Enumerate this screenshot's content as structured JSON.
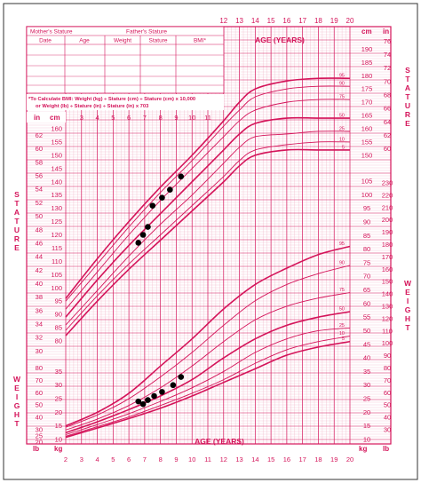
{
  "colors": {
    "accent": "#d4145a",
    "grid": "#f0a8c0",
    "background": "#ffffff",
    "points": "#000000"
  },
  "table": {
    "mothers_stature": "Mother's Stature",
    "fathers_stature": "Father's Stature",
    "columns": [
      "Date",
      "Age",
      "Weight",
      "Stature",
      "BMI*"
    ]
  },
  "bmi_note": {
    "line1": "*To Calculate BMI: Weight (kg) ÷ Stature (cm) ÷ Stature (cm) x 10,000",
    "line2": "or Weight (lb) ÷ Stature (in) ÷ Stature (in) x 703"
  },
  "labels": {
    "age_years_top": "AGE (YEARS)",
    "age_years_bottom": "AGE (YEARS)",
    "stature_left": "STATURE",
    "stature_right": "STATURE",
    "weight_left": "WEIGHT",
    "weight_right": "WEIGHT",
    "in": "in",
    "cm": "cm",
    "lb": "lb",
    "kg": "kg"
  },
  "chart_data": {
    "type": "line",
    "x_ticks_top": [
      "12",
      "13",
      "14",
      "15",
      "16",
      "17",
      "18",
      "19",
      "20"
    ],
    "x_ticks_inner": [
      "3",
      "4",
      "5",
      "6",
      "7",
      "8",
      "9",
      "10",
      "11"
    ],
    "x_ticks_bottom": [
      "2",
      "3",
      "4",
      "5",
      "6",
      "7",
      "8",
      "9",
      "10",
      "11",
      "12",
      "13",
      "14",
      "15",
      "16",
      "17",
      "18",
      "19",
      "20"
    ],
    "stature_cm_ticks_left": [
      "80",
      "85",
      "90",
      "95",
      "100",
      "105",
      "110",
      "115",
      "120",
      "125",
      "130",
      "135",
      "140",
      "145",
      "150",
      "155",
      "160"
    ],
    "stature_in_ticks_left": [
      "30",
      "32",
      "34",
      "36",
      "38",
      "40",
      "42",
      "44",
      "46",
      "48",
      "50",
      "52",
      "54",
      "56",
      "58",
      "60",
      "62"
    ],
    "stature_cm_ticks_right": [
      "150",
      "155",
      "160",
      "165",
      "170",
      "175",
      "180",
      "185",
      "190"
    ],
    "stature_in_ticks_right": [
      "60",
      "62",
      "64",
      "66",
      "68",
      "70",
      "72",
      "74",
      "76"
    ],
    "weight_kg_ticks_left": [
      "10",
      "15",
      "20",
      "25",
      "30",
      "35"
    ],
    "weight_lb_ticks_left": [
      "20",
      "25",
      "30",
      "40",
      "50",
      "60",
      "70",
      "80"
    ],
    "weight_kg_ticks_right": [
      "10",
      "15",
      "20",
      "25",
      "30",
      "35",
      "40",
      "45",
      "50",
      "55",
      "60",
      "65",
      "70",
      "75",
      "80",
      "85",
      "90",
      "95",
      "100",
      "105"
    ],
    "weight_lb_ticks_right": [
      "30",
      "40",
      "50",
      "60",
      "70",
      "80",
      "90",
      "100",
      "110",
      "120",
      "130",
      "140",
      "150",
      "160",
      "170",
      "180",
      "190",
      "200",
      "210",
      "220",
      "230"
    ],
    "stature_percentiles": [
      {
        "name": "95",
        "x": [
          2,
          4,
          6,
          8,
          10,
          12,
          13,
          14,
          16,
          18,
          20
        ],
        "values": [
          96,
          111,
          125,
          138,
          150,
          163,
          170,
          175,
          178,
          179,
          179
        ]
      },
      {
        "name": "90",
        "x": [
          2,
          4,
          6,
          8,
          10,
          12,
          13,
          14,
          16,
          18,
          20
        ],
        "values": [
          95,
          109,
          123,
          136,
          148,
          161,
          167,
          172,
          175,
          176,
          176
        ]
      },
      {
        "name": "75",
        "x": [
          2,
          4,
          6,
          8,
          10,
          12,
          13,
          14,
          16,
          18,
          20
        ],
        "values": [
          92,
          106,
          120,
          133,
          145,
          157,
          163,
          167,
          170,
          171,
          171
        ]
      },
      {
        "name": "50",
        "x": [
          2,
          4,
          6,
          8,
          10,
          12,
          13,
          14,
          16,
          18,
          20
        ],
        "values": [
          89,
          103,
          116,
          128,
          140,
          152,
          158,
          162,
          164,
          164,
          164
        ]
      },
      {
        "name": "25",
        "x": [
          2,
          4,
          6,
          8,
          10,
          12,
          13,
          14,
          16,
          18,
          20
        ],
        "values": [
          86,
          99,
          112,
          124,
          135,
          147,
          153,
          157,
          158,
          159,
          159
        ]
      },
      {
        "name": "10",
        "x": [
          2,
          4,
          6,
          8,
          10,
          12,
          13,
          14,
          16,
          18,
          20
        ],
        "values": [
          84,
          97,
          109,
          120,
          131,
          142,
          148,
          152,
          154,
          155,
          155
        ]
      },
      {
        "name": "5",
        "x": [
          2,
          4,
          6,
          8,
          10,
          12,
          13,
          14,
          16,
          18,
          20
        ],
        "values": [
          82,
          95,
          107,
          118,
          129,
          140,
          146,
          150,
          152,
          152,
          152
        ]
      }
    ],
    "weight_percentiles": [
      {
        "name": "95",
        "x": [
          2,
          4,
          6,
          8,
          10,
          12,
          14,
          16,
          18,
          20
        ],
        "values": [
          15,
          20,
          27,
          37,
          47,
          58,
          67,
          73,
          78,
          81
        ]
      },
      {
        "name": "90",
        "x": [
          2,
          4,
          6,
          8,
          10,
          12,
          14,
          16,
          18,
          20
        ],
        "values": [
          14.5,
          19,
          25,
          33,
          42,
          52,
          61,
          67,
          71,
          74
        ]
      },
      {
        "name": "75",
        "x": [
          2,
          4,
          6,
          8,
          10,
          12,
          14,
          16,
          18,
          20
        ],
        "values": [
          13.5,
          17.5,
          22.5,
          29,
          37,
          46,
          54,
          59,
          62,
          64
        ]
      },
      {
        "name": "50",
        "x": [
          2,
          4,
          6,
          8,
          10,
          12,
          14,
          16,
          18,
          20
        ],
        "values": [
          12.5,
          16.5,
          21,
          26,
          32,
          40,
          47,
          52,
          55,
          57
        ]
      },
      {
        "name": "25",
        "x": [
          2,
          4,
          6,
          8,
          10,
          12,
          14,
          16,
          18,
          20
        ],
        "values": [
          11.8,
          15.5,
          19.5,
          24,
          29,
          35,
          42,
          47,
          50,
          51
        ]
      },
      {
        "name": "10",
        "x": [
          2,
          4,
          6,
          8,
          10,
          12,
          14,
          16,
          18,
          20
        ],
        "values": [
          11.2,
          14.7,
          18.3,
          22.5,
          27,
          32,
          38,
          43,
          46,
          48
        ]
      },
      {
        "name": "5",
        "x": [
          2,
          4,
          6,
          8,
          10,
          12,
          14,
          16,
          18,
          20
        ],
        "values": [
          10.8,
          14.2,
          17.7,
          21.5,
          26,
          31,
          36,
          41,
          44,
          46
        ]
      }
    ],
    "stature_points": [
      {
        "age": 6.6,
        "value": 117
      },
      {
        "age": 6.9,
        "value": 120
      },
      {
        "age": 7.2,
        "value": 123
      },
      {
        "age": 7.5,
        "value": 131
      },
      {
        "age": 8.1,
        "value": 134
      },
      {
        "age": 8.6,
        "value": 137
      },
      {
        "age": 9.3,
        "value": 142
      }
    ],
    "weight_points": [
      {
        "age": 6.6,
        "value": 24
      },
      {
        "age": 6.9,
        "value": 23
      },
      {
        "age": 7.2,
        "value": 24.5
      },
      {
        "age": 7.6,
        "value": 26
      },
      {
        "age": 8.1,
        "value": 27.5
      },
      {
        "age": 8.8,
        "value": 30
      },
      {
        "age": 9.3,
        "value": 33
      }
    ]
  }
}
